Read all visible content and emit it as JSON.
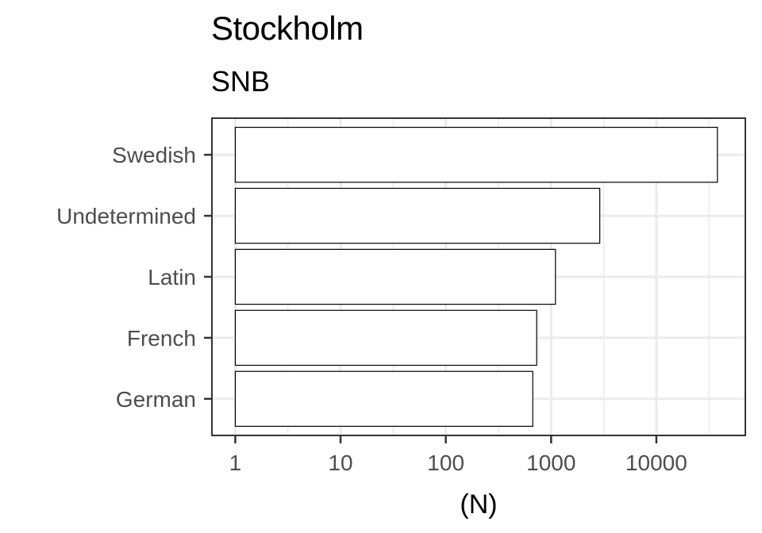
{
  "chart_data": {
    "type": "bar",
    "orientation": "horizontal",
    "title": "Stockholm",
    "subtitle": "SNB",
    "xlabel": "(N)",
    "ylabel": "",
    "xscale": "log10",
    "xlim": [
      0.6,
      70000
    ],
    "xticks": [
      1,
      10,
      100,
      1000,
      10000
    ],
    "xtick_labels": [
      "1",
      "10",
      "100",
      "1000",
      "10000"
    ],
    "categories": [
      "Swedish",
      "Undetermined",
      "Latin",
      "French",
      "German"
    ],
    "values": [
      38000,
      2900,
      1100,
      730,
      670
    ],
    "grid": true,
    "legend": "none",
    "bar_fill": "#ffffff",
    "bar_stroke": "#000000",
    "grid_color": "#ebebeb",
    "panel_border_color": "#333333"
  }
}
